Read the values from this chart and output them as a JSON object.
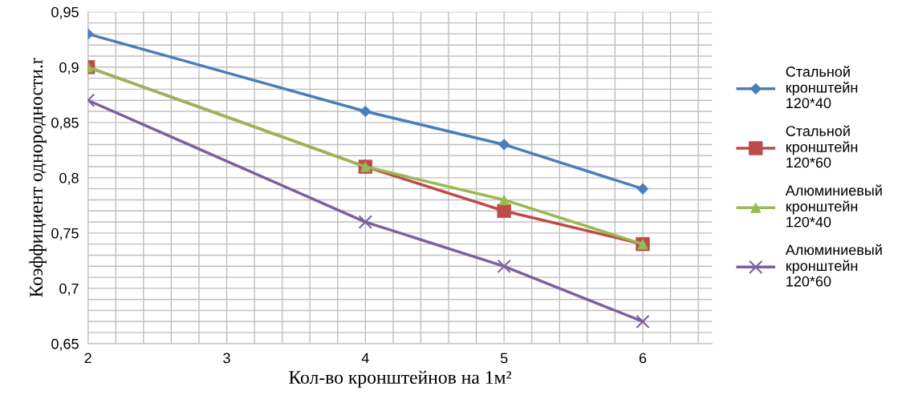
{
  "chart_data": {
    "type": "line",
    "xlabel": "Кол-во кронштейнов на 1м²",
    "ylabel": "Коэффициент однородности.r",
    "x": [
      2,
      4,
      5,
      6
    ],
    "series": [
      {
        "name": "Стальной\nкронштейн\n120*40",
        "color": "#4a7ebb",
        "marker": "diamond",
        "values": [
          0.93,
          0.86,
          0.83,
          0.79
        ]
      },
      {
        "name": "Стальной\nкронштейн\n120*60",
        "color": "#be4b48",
        "marker": "square",
        "values": [
          0.9,
          0.81,
          0.77,
          0.74
        ]
      },
      {
        "name": "Алюминиевый\nкронштейн\n120*40",
        "color": "#98b954",
        "marker": "triangle",
        "values": [
          0.9,
          0.81,
          0.78,
          0.74
        ]
      },
      {
        "name": "Алюминиевый\nкронштейн\n120*60",
        "color": "#7d5fa0",
        "marker": "cross",
        "values": [
          0.87,
          0.76,
          0.72,
          0.67
        ]
      }
    ],
    "xlim": [
      2,
      6.5
    ],
    "xticks": [
      2,
      {
        "value": 2.2,
        "label": null
      },
      {
        "value": 2.4,
        "label": null
      },
      {
        "value": 2.6,
        "label": null
      },
      {
        "value": 2.8,
        "label": null
      },
      3,
      {
        "value": 3.2,
        "label": null
      },
      {
        "value": 3.4,
        "label": null
      },
      {
        "value": 3.6,
        "label": null
      },
      {
        "value": 3.8,
        "label": null
      },
      4,
      {
        "value": 4.2,
        "label": null
      },
      {
        "value": 4.4,
        "label": null
      },
      {
        "value": 4.6,
        "label": null
      },
      {
        "value": 4.8,
        "label": null
      },
      5,
      {
        "value": 5.2,
        "label": null
      },
      {
        "value": 5.4,
        "label": null
      },
      {
        "value": 5.6,
        "label": null
      },
      {
        "value": 5.8,
        "label": null
      },
      6,
      {
        "value": 6.2,
        "label": null
      },
      {
        "value": 6.4,
        "label": null
      }
    ],
    "ylim": [
      0.65,
      0.95
    ],
    "yticks": [
      {
        "value": 0.65,
        "label": "0,65"
      },
      {
        "value": 0.66,
        "label": null
      },
      {
        "value": 0.67,
        "label": null
      },
      {
        "value": 0.68,
        "label": null
      },
      {
        "value": 0.69,
        "label": null
      },
      {
        "value": 0.7,
        "label": "0,7"
      },
      {
        "value": 0.71,
        "label": null
      },
      {
        "value": 0.72,
        "label": null
      },
      {
        "value": 0.73,
        "label": null
      },
      {
        "value": 0.74,
        "label": null
      },
      {
        "value": 0.75,
        "label": "0,75"
      },
      {
        "value": 0.76,
        "label": null
      },
      {
        "value": 0.77,
        "label": null
      },
      {
        "value": 0.78,
        "label": null
      },
      {
        "value": 0.79,
        "label": null
      },
      {
        "value": 0.8,
        "label": "0,8"
      },
      {
        "value": 0.81,
        "label": null
      },
      {
        "value": 0.82,
        "label": null
      },
      {
        "value": 0.83,
        "label": null
      },
      {
        "value": 0.84,
        "label": null
      },
      {
        "value": 0.85,
        "label": "0,85"
      },
      {
        "value": 0.86,
        "label": null
      },
      {
        "value": 0.87,
        "label": null
      },
      {
        "value": 0.88,
        "label": null
      },
      {
        "value": 0.89,
        "label": null
      },
      {
        "value": 0.9,
        "label": "0,9"
      },
      {
        "value": 0.91,
        "label": null
      },
      {
        "value": 0.92,
        "label": null
      },
      {
        "value": 0.93,
        "label": null
      },
      {
        "value": 0.94,
        "label": null
      },
      {
        "value": 0.95,
        "label": "0,95"
      }
    ],
    "grid": true,
    "legend": "right",
    "line_style": "solid"
  }
}
